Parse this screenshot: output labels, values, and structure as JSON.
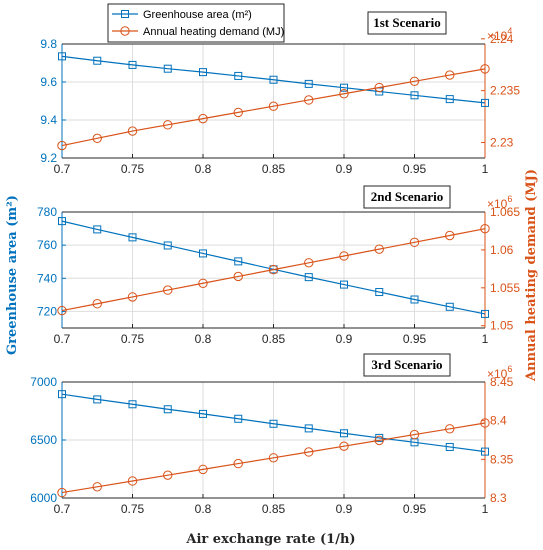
{
  "chart_data": {
    "type": "line",
    "x": [
      0.7,
      0.725,
      0.75,
      0.775,
      0.8,
      0.825,
      0.85,
      0.875,
      0.9,
      0.925,
      0.95,
      0.975,
      1.0
    ],
    "xlabel": "Air exchange rate (1/h)",
    "xlim": [
      0.7,
      1.0
    ],
    "x_ticks": [
      "0.7",
      "0.75",
      "0.8",
      "0.85",
      "0.9",
      "0.95",
      "1"
    ],
    "ylabel_left": "Greenhouse area (m²)",
    "ylabel_right": "Annual heating demand (MJ)",
    "grid": true,
    "legend": {
      "position": "top-left",
      "entries": [
        {
          "label": "Greenhouse area (m²)",
          "color": "#0072BD",
          "marker": "square"
        },
        {
          "label": "Annual heating demand (MJ)",
          "color": "#D95319",
          "marker": "circle"
        }
      ]
    },
    "panels": [
      {
        "title": "1st Scenario",
        "left": {
          "ylim": [
            9.2,
            9.8
          ],
          "ticks": [
            "9.2",
            "9.4",
            "9.6",
            "9.8"
          ],
          "values": [
            9.735,
            9.712,
            9.69,
            9.67,
            9.652,
            9.632,
            9.612,
            9.59,
            9.57,
            9.55,
            9.53,
            9.51,
            9.49
          ]
        },
        "right": {
          "ylim": [
            2.2285,
            2.2395
          ],
          "ticks": [
            "2.23",
            "2.235",
            "2.24"
          ],
          "exponent": "4",
          "values": [
            2.2297,
            2.2304,
            2.2311,
            2.2317,
            2.2323,
            2.2329,
            2.2335,
            2.2341,
            2.2347,
            2.2353,
            2.2359,
            2.2365,
            2.2371
          ]
        }
      },
      {
        "title": "2nd Scenario",
        "left": {
          "ylim": [
            710,
            780
          ],
          "ticks": [
            "720",
            "740",
            "760",
            "780"
          ],
          "values": [
            774.5,
            769.5,
            764.7,
            759.8,
            755.0,
            750.2,
            745.4,
            740.7,
            736.2,
            731.7,
            727.2,
            722.8,
            718.5
          ]
        },
        "right": {
          "ylim": [
            1.0497,
            1.065
          ],
          "ticks": [
            "1.05",
            "1.055",
            "1.06",
            "1.065"
          ],
          "exponent": "6",
          "values": [
            1.052,
            1.0529,
            1.0538,
            1.0547,
            1.0556,
            1.0565,
            1.0574,
            1.0583,
            1.0592,
            1.0601,
            1.061,
            1.0619,
            1.0628
          ]
        }
      },
      {
        "title": "3rd Scenario",
        "left": {
          "ylim": [
            6000,
            7000
          ],
          "ticks": [
            "6000",
            "6500",
            "7000"
          ],
          "values": [
            6895,
            6850,
            6808,
            6765,
            6725,
            6683,
            6640,
            6600,
            6558,
            6518,
            6480,
            6440,
            6400
          ]
        },
        "right": {
          "ylim": [
            8.3,
            8.45
          ],
          "ticks": [
            "8.3",
            "8.35",
            "8.4",
            "8.45"
          ],
          "exponent": "6",
          "values": [
            8.307,
            8.3145,
            8.322,
            8.3295,
            8.337,
            8.3445,
            8.352,
            8.3595,
            8.367,
            8.3745,
            8.382,
            8.3895,
            8.397
          ]
        }
      }
    ]
  }
}
